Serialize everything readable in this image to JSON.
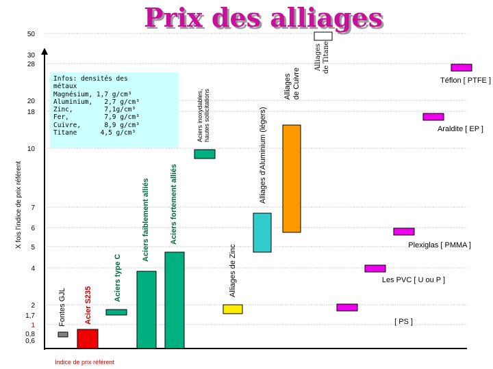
{
  "title": "Prix des alliages",
  "colors": {
    "title": "#c8109a",
    "grid": "#808080",
    "fonte": "#808080",
    "acier_s235": "#ee0000",
    "acier": "#00b080",
    "zinc": "#ffee00",
    "aluminium": "#33cccc",
    "cuivre": "#ff9900",
    "titane": "#ffffff",
    "plastiques": "#ee00ee",
    "info_box": "#ccffff"
  },
  "axis": {
    "ylabel": "X fois l'indice de prix référent",
    "xlabel": "Indice de prix référent",
    "ticks": [
      "0,6",
      "0,8",
      "1",
      "1,7",
      "2",
      "4",
      "5",
      "6",
      "7",
      "10",
      "18",
      "20",
      "28",
      "30",
      "50"
    ]
  },
  "info": {
    "lines": [
      "Infos: densités des",
      "métaux",
      "Magnésium, 1,7 g/cm³",
      "Aluminium,   2,7 g/cm³",
      "Zinc,        7,1g/cm³",
      "Fer,         7,9 g/cm³",
      "Cuivre,      8,9 g/cm³",
      "Titane      4,5 g/cm³"
    ]
  },
  "chart_data": {
    "type": "bar",
    "title": "Prix des alliages",
    "ylabel": "X fois l'indice de prix référent",
    "xlabel": "Indice de prix référent",
    "y_scale": "nonlinear (tick labels 0,6 … 50)",
    "grid": true,
    "metals": [
      {
        "name": "Fontes GJL",
        "min": 0.8,
        "max": 0.8,
        "color_key": "fonte"
      },
      {
        "name": "Acier S235",
        "min": 0.6,
        "max": 1,
        "color_key": "acier_s235"
      },
      {
        "name": "Aciers type C",
        "min": 1.7,
        "max": 1.7,
        "color_key": "acier"
      },
      {
        "name": "Aciers faiblement alliés",
        "min": 1.7,
        "max": 4,
        "color_key": "acier"
      },
      {
        "name": "Aciers fortement alliés",
        "min": 1.7,
        "max": 5,
        "color_key": "acier"
      },
      {
        "name": "Aciers inoxydables, hautes sollicitations",
        "min": 10,
        "max": 10,
        "color_key": "acier"
      },
      {
        "name": "Alliages de Zinc",
        "min": 1.7,
        "max": 2,
        "color_key": "zinc"
      },
      {
        "name": "Alliages d'Aluminium (légers)",
        "min": 5,
        "max": 7,
        "color_key": "aluminium"
      },
      {
        "name": "Alliages de Cuivre",
        "min": 5,
        "max": 18,
        "color_key": "cuivre"
      },
      {
        "name": "Alliages de Titane",
        "min": 50,
        "max": 50,
        "color_key": "titane"
      }
    ],
    "plastics": [
      {
        "name": "Téflon [ PTFE ]",
        "value": 28
      },
      {
        "name": "Araldite  [ EP ]",
        "value": 18
      },
      {
        "name": "Plexiglas [ PMMA ]",
        "value": 6
      },
      {
        "name": "Les  PVC  [ U ou P ]",
        "value": 4
      },
      {
        "name": "[ PS ]",
        "value": 2
      }
    ]
  }
}
